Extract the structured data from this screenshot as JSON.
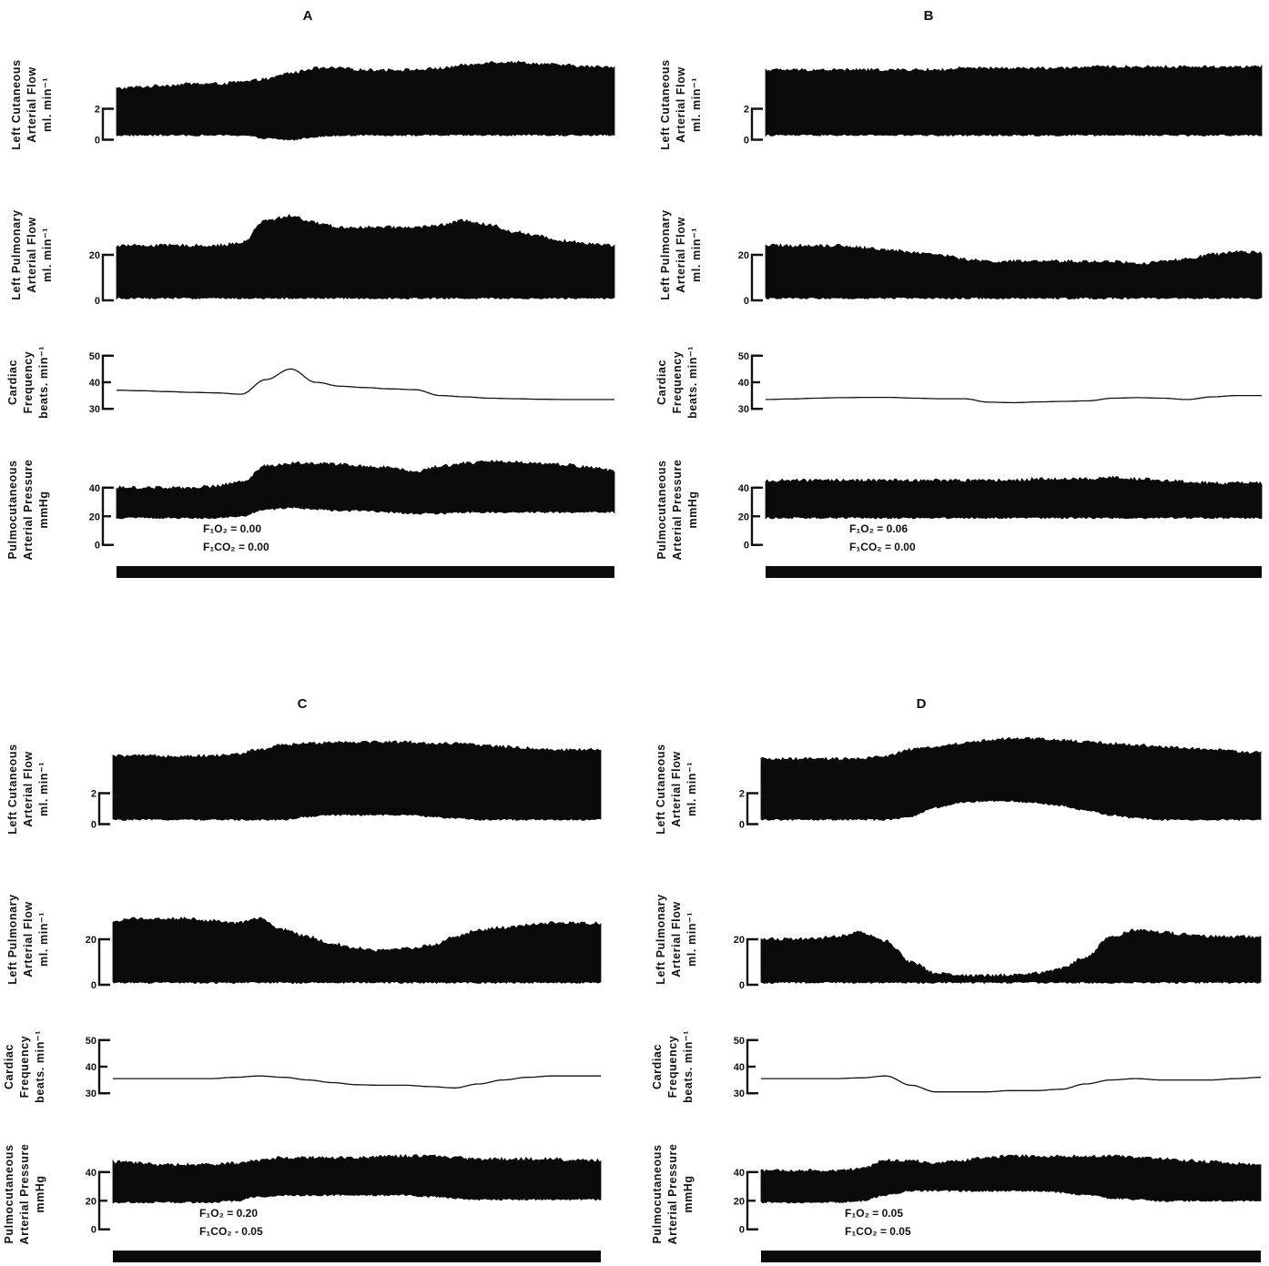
{
  "chart_data": [
    {
      "type": "line",
      "panel": "A",
      "conditions": [
        "F₁O₂ = 0.00",
        "F₁CO₂ = 0.00"
      ],
      "x": [
        0,
        5,
        10,
        15,
        20,
        25,
        30,
        35,
        40,
        45,
        50,
        55,
        60,
        65,
        70,
        75,
        80,
        85,
        90,
        95,
        100
      ],
      "series": [
        {
          "name": "Left Cutaneous Arterial Flow",
          "unit": "ml. min⁻¹",
          "ticks": [
            0,
            2
          ],
          "ylim": [
            -0.5,
            5.5
          ],
          "upper": [
            3.3,
            3.4,
            3.5,
            3.6,
            3.6,
            3.7,
            3.9,
            4.3,
            4.6,
            4.6,
            4.5,
            4.5,
            4.5,
            4.6,
            4.8,
            5.0,
            5.0,
            4.9,
            4.8,
            4.7,
            4.7
          ],
          "lower": [
            0.3,
            0.3,
            0.3,
            0.3,
            0.3,
            0.3,
            0.1,
            0.0,
            0.2,
            0.3,
            0.3,
            0.3,
            0.3,
            0.3,
            0.3,
            0.3,
            0.3,
            0.3,
            0.3,
            0.3,
            0.3
          ]
        },
        {
          "name": "Left Pulmonary Arterial Flow",
          "unit": "ml. min⁻¹",
          "ticks": [
            0,
            20
          ],
          "ylim": [
            -2,
            42
          ],
          "upper": [
            24,
            24,
            24,
            24,
            24,
            25,
            35,
            37,
            34,
            32,
            32,
            32,
            32,
            33,
            35,
            33,
            30,
            28,
            26,
            25,
            24
          ],
          "lower": [
            1,
            1,
            1,
            1,
            1,
            1,
            1,
            1,
            1,
            1,
            1,
            1,
            1,
            1,
            1,
            1,
            1,
            1,
            1,
            1,
            1
          ]
        },
        {
          "name": "Cardiac Frequency",
          "unit": "beats. min⁻¹",
          "ticks": [
            30,
            40,
            50
          ],
          "ylim": [
            28,
            52
          ],
          "values": [
            37,
            36.8,
            36.5,
            36.2,
            36,
            35.5,
            41,
            45,
            40,
            38.5,
            38,
            37.5,
            37.2,
            35,
            34.5,
            34,
            33.8,
            33.6,
            33.5,
            33.5,
            33.5
          ]
        },
        {
          "name": "Pulmocutaneous Arterial Pressure",
          "unit": "mmHg",
          "ticks": [
            0,
            20,
            40
          ],
          "ylim": [
            -4,
            66
          ],
          "upper": [
            40,
            40,
            40,
            40,
            41,
            44,
            55,
            57,
            57,
            56,
            55,
            54,
            51,
            55,
            57,
            58,
            58,
            57,
            56,
            54,
            52
          ],
          "lower": [
            19,
            19,
            19,
            19,
            19,
            20,
            25,
            26,
            25,
            24,
            24,
            23,
            22,
            22,
            23,
            23,
            23,
            23,
            23,
            23,
            23
          ]
        }
      ]
    },
    {
      "type": "line",
      "panel": "B",
      "conditions": [
        "F₁O₂ = 0.06",
        "F₁CO₂ = 0.00"
      ],
      "x": [
        0,
        5,
        10,
        15,
        20,
        25,
        30,
        35,
        40,
        45,
        50,
        55,
        60,
        65,
        70,
        75,
        80,
        85,
        90,
        95,
        100
      ],
      "series": [
        {
          "name": "Left Cutaneous Arterial Flow",
          "unit": "ml. min⁻¹",
          "ticks": [
            0,
            2
          ],
          "ylim": [
            -0.5,
            5.5
          ],
          "upper": [
            4.5,
            4.5,
            4.5,
            4.5,
            4.5,
            4.5,
            4.5,
            4.5,
            4.6,
            4.6,
            4.6,
            4.6,
            4.6,
            4.7,
            4.7,
            4.7,
            4.7,
            4.7,
            4.7,
            4.7,
            4.7
          ],
          "lower": [
            0.3,
            0.3,
            0.3,
            0.3,
            0.3,
            0.3,
            0.3,
            0.3,
            0.3,
            0.3,
            0.3,
            0.3,
            0.3,
            0.3,
            0.3,
            0.3,
            0.3,
            0.3,
            0.3,
            0.3,
            0.3
          ]
        },
        {
          "name": "Left Pulmonary Arterial Flow",
          "unit": "ml. min⁻¹",
          "ticks": [
            0,
            20
          ],
          "ylim": [
            -2,
            42
          ],
          "upper": [
            24,
            24,
            24,
            24,
            23,
            22,
            21,
            20,
            18,
            17,
            17,
            17,
            17,
            17,
            17,
            16,
            17,
            18,
            20,
            21,
            21
          ],
          "lower": [
            1,
            1,
            1,
            1,
            1,
            1,
            1,
            1,
            1,
            1,
            1,
            1,
            1,
            1,
            1,
            1,
            1,
            1,
            1,
            1,
            1
          ]
        },
        {
          "name": "Cardiac Frequency",
          "unit": "beats. min⁻¹",
          "ticks": [
            30,
            40,
            50
          ],
          "ylim": [
            28,
            52
          ],
          "values": [
            33.5,
            33.7,
            34,
            34.2,
            34.3,
            34.3,
            34,
            33.8,
            33.8,
            32.5,
            32.3,
            32.6,
            32.8,
            33,
            34,
            34.2,
            34,
            33.5,
            34.5,
            35,
            35
          ]
        },
        {
          "name": "Pulmocutaneous Arterial Pressure",
          "unit": "mmHg",
          "ticks": [
            0,
            20,
            40
          ],
          "ylim": [
            -4,
            66
          ],
          "upper": [
            45,
            45,
            45,
            45,
            45,
            45,
            45,
            45,
            45,
            45,
            45,
            46,
            46,
            46,
            47,
            46,
            45,
            44,
            43,
            43,
            43
          ],
          "lower": [
            19,
            19,
            19,
            19,
            19,
            19,
            19,
            19,
            19,
            19,
            19,
            19,
            19,
            19,
            19,
            19,
            19,
            19,
            19,
            19,
            19
          ]
        }
      ]
    },
    {
      "type": "line",
      "panel": "C",
      "conditions": [
        "F₁O₂ = 0.20",
        "F₁CO₂ - 0.05"
      ],
      "x": [
        0,
        5,
        10,
        15,
        20,
        25,
        30,
        35,
        40,
        45,
        50,
        55,
        60,
        65,
        70,
        75,
        80,
        85,
        90,
        95,
        100
      ],
      "series": [
        {
          "name": "Left Cutaneous Arterial Flow",
          "unit": "ml. min⁻¹",
          "ticks": [
            0,
            2
          ],
          "ylim": [
            -0.5,
            5.5
          ],
          "upper": [
            4.4,
            4.4,
            4.4,
            4.4,
            4.4,
            4.5,
            4.8,
            5.1,
            5.2,
            5.3,
            5.3,
            5.3,
            5.3,
            5.2,
            5.2,
            5.1,
            5.0,
            4.9,
            4.8,
            4.8,
            4.8
          ],
          "lower": [
            0.3,
            0.3,
            0.3,
            0.3,
            0.3,
            0.3,
            0.3,
            0.3,
            0.5,
            0.6,
            0.6,
            0.6,
            0.6,
            0.5,
            0.4,
            0.3,
            0.3,
            0.3,
            0.3,
            0.3,
            0.3
          ]
        },
        {
          "name": "Left Pulmonary Arterial Flow",
          "unit": "ml. min⁻¹",
          "ticks": [
            0,
            20
          ],
          "ylim": [
            -2,
            42
          ],
          "upper": [
            28,
            29,
            29,
            29,
            28,
            27,
            29,
            24,
            21,
            18,
            16,
            15,
            16,
            17,
            21,
            24,
            25,
            26,
            27,
            27,
            27
          ],
          "lower": [
            1,
            1,
            1,
            1,
            1,
            1,
            1,
            1,
            1,
            1,
            1,
            1,
            1,
            1,
            1,
            1,
            1,
            1,
            1,
            1,
            1
          ]
        },
        {
          "name": "Cardiac Frequency",
          "unit": "beats. min⁻¹",
          "ticks": [
            30,
            40,
            50
          ],
          "ylim": [
            28,
            52
          ],
          "values": [
            35.5,
            35.5,
            35.5,
            35.5,
            35.5,
            36,
            36.5,
            36,
            35,
            34,
            33.2,
            33,
            33,
            32.5,
            32,
            33.5,
            35,
            36,
            36.5,
            36.5,
            36.5
          ]
        },
        {
          "name": "Pulmocutaneous Arterial Pressure",
          "unit": "mmHg",
          "ticks": [
            0,
            20,
            40
          ],
          "ylim": [
            -4,
            66
          ],
          "upper": [
            47,
            46,
            45,
            45,
            45,
            46,
            48,
            50,
            50,
            50,
            50,
            51,
            51,
            51,
            50,
            49,
            49,
            49,
            49,
            48,
            48
          ],
          "lower": [
            19,
            19,
            19,
            19,
            19,
            20,
            23,
            24,
            24,
            24,
            24,
            24,
            24,
            23,
            22,
            21,
            21,
            21,
            21,
            21,
            21
          ]
        }
      ]
    },
    {
      "type": "line",
      "panel": "D",
      "conditions": [
        "F₁O₂ = 0.05",
        "F₁CO₂ = 0.05"
      ],
      "x": [
        0,
        5,
        10,
        15,
        20,
        25,
        30,
        35,
        40,
        45,
        50,
        55,
        60,
        65,
        70,
        75,
        80,
        85,
        90,
        95,
        100
      ],
      "series": [
        {
          "name": "Left Cutaneous Arterial Flow",
          "unit": "ml. min⁻¹",
          "ticks": [
            0,
            2
          ],
          "ylim": [
            -0.5,
            5.5
          ],
          "upper": [
            4.2,
            4.2,
            4.2,
            4.2,
            4.2,
            4.4,
            4.8,
            5.0,
            5.2,
            5.4,
            5.5,
            5.5,
            5.4,
            5.3,
            5.2,
            5.1,
            5.0,
            4.9,
            4.8,
            4.7,
            4.6
          ],
          "lower": [
            0.3,
            0.3,
            0.3,
            0.3,
            0.3,
            0.3,
            0.5,
            1.1,
            1.4,
            1.5,
            1.5,
            1.4,
            1.2,
            0.9,
            0.6,
            0.4,
            0.3,
            0.3,
            0.3,
            0.3,
            0.3
          ]
        },
        {
          "name": "Left Pulmonary Arterial Flow",
          "unit": "ml. min⁻¹",
          "ticks": [
            0,
            20
          ],
          "ylim": [
            -2,
            42
          ],
          "upper": [
            20,
            20,
            20,
            21,
            23,
            19,
            10,
            5,
            4,
            4,
            4,
            5,
            7,
            12,
            21,
            24,
            23,
            22,
            21,
            21,
            21
          ],
          "lower": [
            1,
            1,
            1,
            1,
            1,
            1,
            1,
            1,
            1,
            1,
            1,
            1,
            1,
            1,
            1,
            1,
            1,
            1,
            1,
            1,
            1
          ]
        },
        {
          "name": "Cardiac Frequency",
          "unit": "beats. min⁻¹",
          "ticks": [
            30,
            40,
            50
          ],
          "ylim": [
            28,
            52
          ],
          "values": [
            35.5,
            35.5,
            35.5,
            35.5,
            35.8,
            36.5,
            33,
            30.5,
            30.5,
            30.5,
            31,
            31,
            31.5,
            33.5,
            35,
            35.5,
            35,
            35,
            35,
            35.5,
            36
          ]
        },
        {
          "name": "Pulmocutaneous Arterial Pressure",
          "unit": "mmHg",
          "ticks": [
            0,
            20,
            40
          ],
          "ylim": [
            -4,
            66
          ],
          "upper": [
            41,
            41,
            41,
            41,
            42,
            48,
            48,
            46,
            48,
            50,
            51,
            51,
            51,
            51,
            51,
            50,
            49,
            48,
            47,
            46,
            45
          ],
          "lower": [
            19,
            19,
            19,
            19,
            20,
            24,
            27,
            27,
            27,
            27,
            27,
            27,
            26,
            24,
            22,
            21,
            20,
            20,
            20,
            20,
            20
          ]
        }
      ]
    }
  ]
}
